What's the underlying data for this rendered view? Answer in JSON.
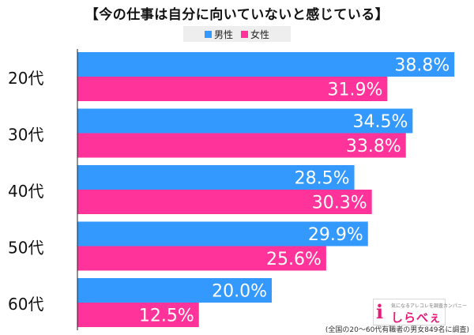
{
  "chart_data": {
    "type": "bar",
    "orientation": "horizontal",
    "title": "【今の仕事は自分に向いていないと感じている】",
    "categories": [
      "20代",
      "30代",
      "40代",
      "50代",
      "60代"
    ],
    "series": [
      {
        "name": "男性",
        "values": [
          38.8,
          34.5,
          28.5,
          29.9,
          20.0
        ],
        "color": "#3399ff"
      },
      {
        "name": "女性",
        "values": [
          31.9,
          33.8,
          30.3,
          25.6,
          12.5
        ],
        "color": "#ff3399"
      }
    ],
    "value_suffix": "%",
    "legend_position": "top-center",
    "grid": false,
    "xlim": [
      0,
      40
    ]
  },
  "logo": {
    "mark": "i",
    "tagline": "気になるアレコレを調査カンパニー",
    "text": "しらべぇ"
  },
  "footnote": "(全国の20～60代有職者の男女849名に調査)"
}
